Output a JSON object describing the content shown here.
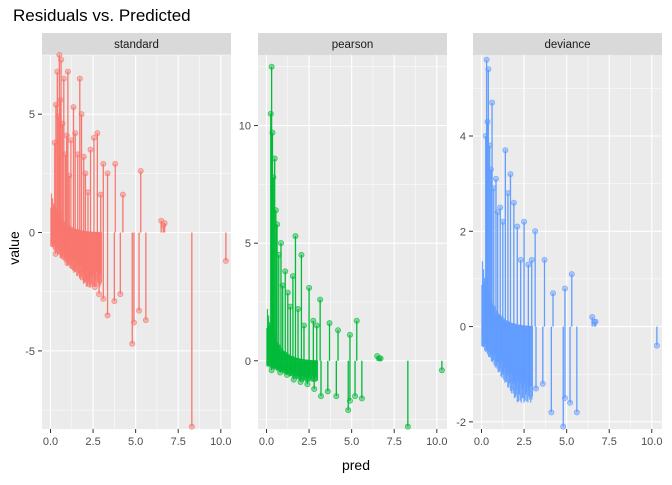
{
  "chart_data": {
    "type": "scatter",
    "subtype": "residual lollipop facets",
    "title": "Residuals vs. Predicted",
    "xlabel": "pred",
    "ylabel": "value",
    "grid": true,
    "legend": "none",
    "background": "#ebebeb",
    "strip_background": "#d9d9d9",
    "facets": [
      {
        "name": "standard",
        "color": "#f8766d",
        "xlim": [
          -0.5,
          10.6
        ],
        "ylim": [
          -8.3,
          7.5
        ],
        "xticks": [
          0.0,
          2.5,
          5.0,
          7.5,
          10.0
        ],
        "xtick_labels": [
          "0.0",
          "2.5",
          "5.0",
          "7.5",
          "10.0"
        ],
        "yticks": [
          -5,
          0,
          5
        ],
        "ytick_labels": [
          "-5",
          "0",
          "5"
        ],
        "points": [
          [
            0.25,
            3.8
          ],
          [
            0.32,
            5.4
          ],
          [
            0.4,
            6.8
          ],
          [
            0.45,
            4.9
          ],
          [
            0.52,
            7.5
          ],
          [
            0.58,
            5.6
          ],
          [
            0.62,
            7.3
          ],
          [
            0.7,
            4.6
          ],
          [
            0.78,
            6.5
          ],
          [
            0.88,
            3.3
          ],
          [
            0.95,
            4.1
          ],
          [
            1.02,
            6.8
          ],
          [
            1.1,
            2.4
          ],
          [
            1.2,
            3.9
          ],
          [
            1.35,
            5.3
          ],
          [
            1.45,
            4.2
          ],
          [
            1.6,
            3.3
          ],
          [
            1.72,
            6.5
          ],
          [
            1.82,
            5.0
          ],
          [
            1.95,
            3.2
          ],
          [
            2.05,
            2.5
          ],
          [
            2.2,
            1.7
          ],
          [
            2.35,
            3.5
          ],
          [
            2.55,
            4.0
          ],
          [
            2.75,
            4.2
          ],
          [
            2.95,
            1.6
          ],
          [
            3.1,
            2.9
          ],
          [
            3.35,
            2.5
          ],
          [
            3.8,
            2.9
          ],
          [
            4.25,
            1.6
          ],
          [
            5.3,
            2.6
          ],
          [
            6.5,
            0.5
          ],
          [
            6.62,
            0.3
          ],
          [
            6.7,
            0.4
          ],
          [
            0.3,
            -0.9
          ],
          [
            0.7,
            -1.0
          ],
          [
            1.0,
            -1.3
          ],
          [
            1.4,
            -1.5
          ],
          [
            1.8,
            -1.7
          ],
          [
            2.1,
            -2.0
          ],
          [
            2.3,
            -2.2
          ],
          [
            2.6,
            -2.3
          ],
          [
            2.85,
            -2.6
          ],
          [
            3.1,
            -2.8
          ],
          [
            3.35,
            -3.5
          ],
          [
            3.75,
            -2.9
          ],
          [
            4.1,
            -2.6
          ],
          [
            4.8,
            -4.7
          ],
          [
            4.9,
            -3.8
          ],
          [
            5.2,
            -3.3
          ],
          [
            5.6,
            -3.7
          ],
          [
            8.3,
            -8.2
          ],
          [
            10.3,
            -1.2
          ]
        ]
      },
      {
        "name": "pearson",
        "color": "#00ba38",
        "xlim": [
          -0.5,
          10.6
        ],
        "ylim": [
          -2.9,
          13.0
        ],
        "xticks": [
          0.0,
          2.5,
          5.0,
          7.5,
          10.0
        ],
        "xtick_labels": [
          "0.0",
          "2.5",
          "5.0",
          "7.5",
          "10.0"
        ],
        "yticks": [
          0,
          5,
          10
        ],
        "ytick_labels": [
          "0",
          "5",
          "10"
        ],
        "points": [
          [
            0.25,
            10.5
          ],
          [
            0.3,
            12.5
          ],
          [
            0.35,
            9.7
          ],
          [
            0.4,
            7.8
          ],
          [
            0.48,
            8.6
          ],
          [
            0.55,
            6.4
          ],
          [
            0.62,
            5.8
          ],
          [
            0.72,
            4.5
          ],
          [
            0.85,
            5.0
          ],
          [
            0.95,
            3.2
          ],
          [
            1.1,
            3.8
          ],
          [
            1.25,
            2.9
          ],
          [
            1.4,
            2.3
          ],
          [
            1.55,
            3.6
          ],
          [
            1.7,
            5.3
          ],
          [
            1.85,
            2.2
          ],
          [
            2.05,
            4.5
          ],
          [
            2.2,
            1.5
          ],
          [
            2.5,
            3.1
          ],
          [
            2.75,
            1.7
          ],
          [
            2.95,
            1.5
          ],
          [
            3.15,
            2.6
          ],
          [
            3.7,
            1.6
          ],
          [
            4.2,
            1.3
          ],
          [
            4.9,
            1.1
          ],
          [
            5.3,
            1.7
          ],
          [
            6.5,
            0.2
          ],
          [
            6.62,
            0.1
          ],
          [
            6.7,
            0.1
          ],
          [
            0.3,
            -0.4
          ],
          [
            0.8,
            -0.5
          ],
          [
            1.2,
            -0.6
          ],
          [
            1.6,
            -0.8
          ],
          [
            2.0,
            -0.9
          ],
          [
            2.4,
            -1.0
          ],
          [
            2.8,
            -1.2
          ],
          [
            3.2,
            -1.5
          ],
          [
            3.6,
            -1.3
          ],
          [
            4.1,
            -1.5
          ],
          [
            4.8,
            -2.1
          ],
          [
            4.9,
            -1.7
          ],
          [
            5.2,
            -1.5
          ],
          [
            5.6,
            -1.6
          ],
          [
            8.3,
            -2.8
          ],
          [
            10.3,
            -0.4
          ]
        ]
      },
      {
        "name": "deviance",
        "color": "#619cff",
        "xlim": [
          -0.5,
          10.6
        ],
        "ylim": [
          -2.15,
          5.7
        ],
        "xticks": [
          0.0,
          2.5,
          5.0,
          7.5,
          10.0
        ],
        "xtick_labels": [
          "0.0",
          "2.5",
          "5.0",
          "7.5",
          "10.0"
        ],
        "yticks": [
          -2,
          0,
          2,
          4
        ],
        "ytick_labels": [
          "-2",
          "0",
          "2",
          "4"
        ],
        "points": [
          [
            0.25,
            4.0
          ],
          [
            0.3,
            5.6
          ],
          [
            0.35,
            4.3
          ],
          [
            0.4,
            5.4
          ],
          [
            0.48,
            3.8
          ],
          [
            0.55,
            3.3
          ],
          [
            0.62,
            4.7
          ],
          [
            0.72,
            2.9
          ],
          [
            0.85,
            3.1
          ],
          [
            0.95,
            2.4
          ],
          [
            1.1,
            2.5
          ],
          [
            1.25,
            2.2
          ],
          [
            1.4,
            3.7
          ],
          [
            1.55,
            2.8
          ],
          [
            1.7,
            3.2
          ],
          [
            1.9,
            2.6
          ],
          [
            2.1,
            2.1
          ],
          [
            2.3,
            1.4
          ],
          [
            2.5,
            2.2
          ],
          [
            2.75,
            1.3
          ],
          [
            2.95,
            1.4
          ],
          [
            3.15,
            2.0
          ],
          [
            3.7,
            1.4
          ],
          [
            4.2,
            0.7
          ],
          [
            4.9,
            0.8
          ],
          [
            5.3,
            1.1
          ],
          [
            6.5,
            0.2
          ],
          [
            6.62,
            0.1
          ],
          [
            6.7,
            0.1
          ],
          [
            0.3,
            -0.3
          ],
          [
            0.8,
            -0.5
          ],
          [
            1.2,
            -0.6
          ],
          [
            1.6,
            -0.8
          ],
          [
            2.0,
            -0.9
          ],
          [
            2.4,
            -1.0
          ],
          [
            2.8,
            -1.2
          ],
          [
            3.2,
            -1.3
          ],
          [
            3.6,
            -1.2
          ],
          [
            4.1,
            -1.8
          ],
          [
            4.8,
            -2.1
          ],
          [
            4.9,
            -1.5
          ],
          [
            5.2,
            -1.6
          ],
          [
            5.6,
            -1.8
          ],
          [
            10.3,
            -0.4
          ]
        ]
      }
    ]
  }
}
